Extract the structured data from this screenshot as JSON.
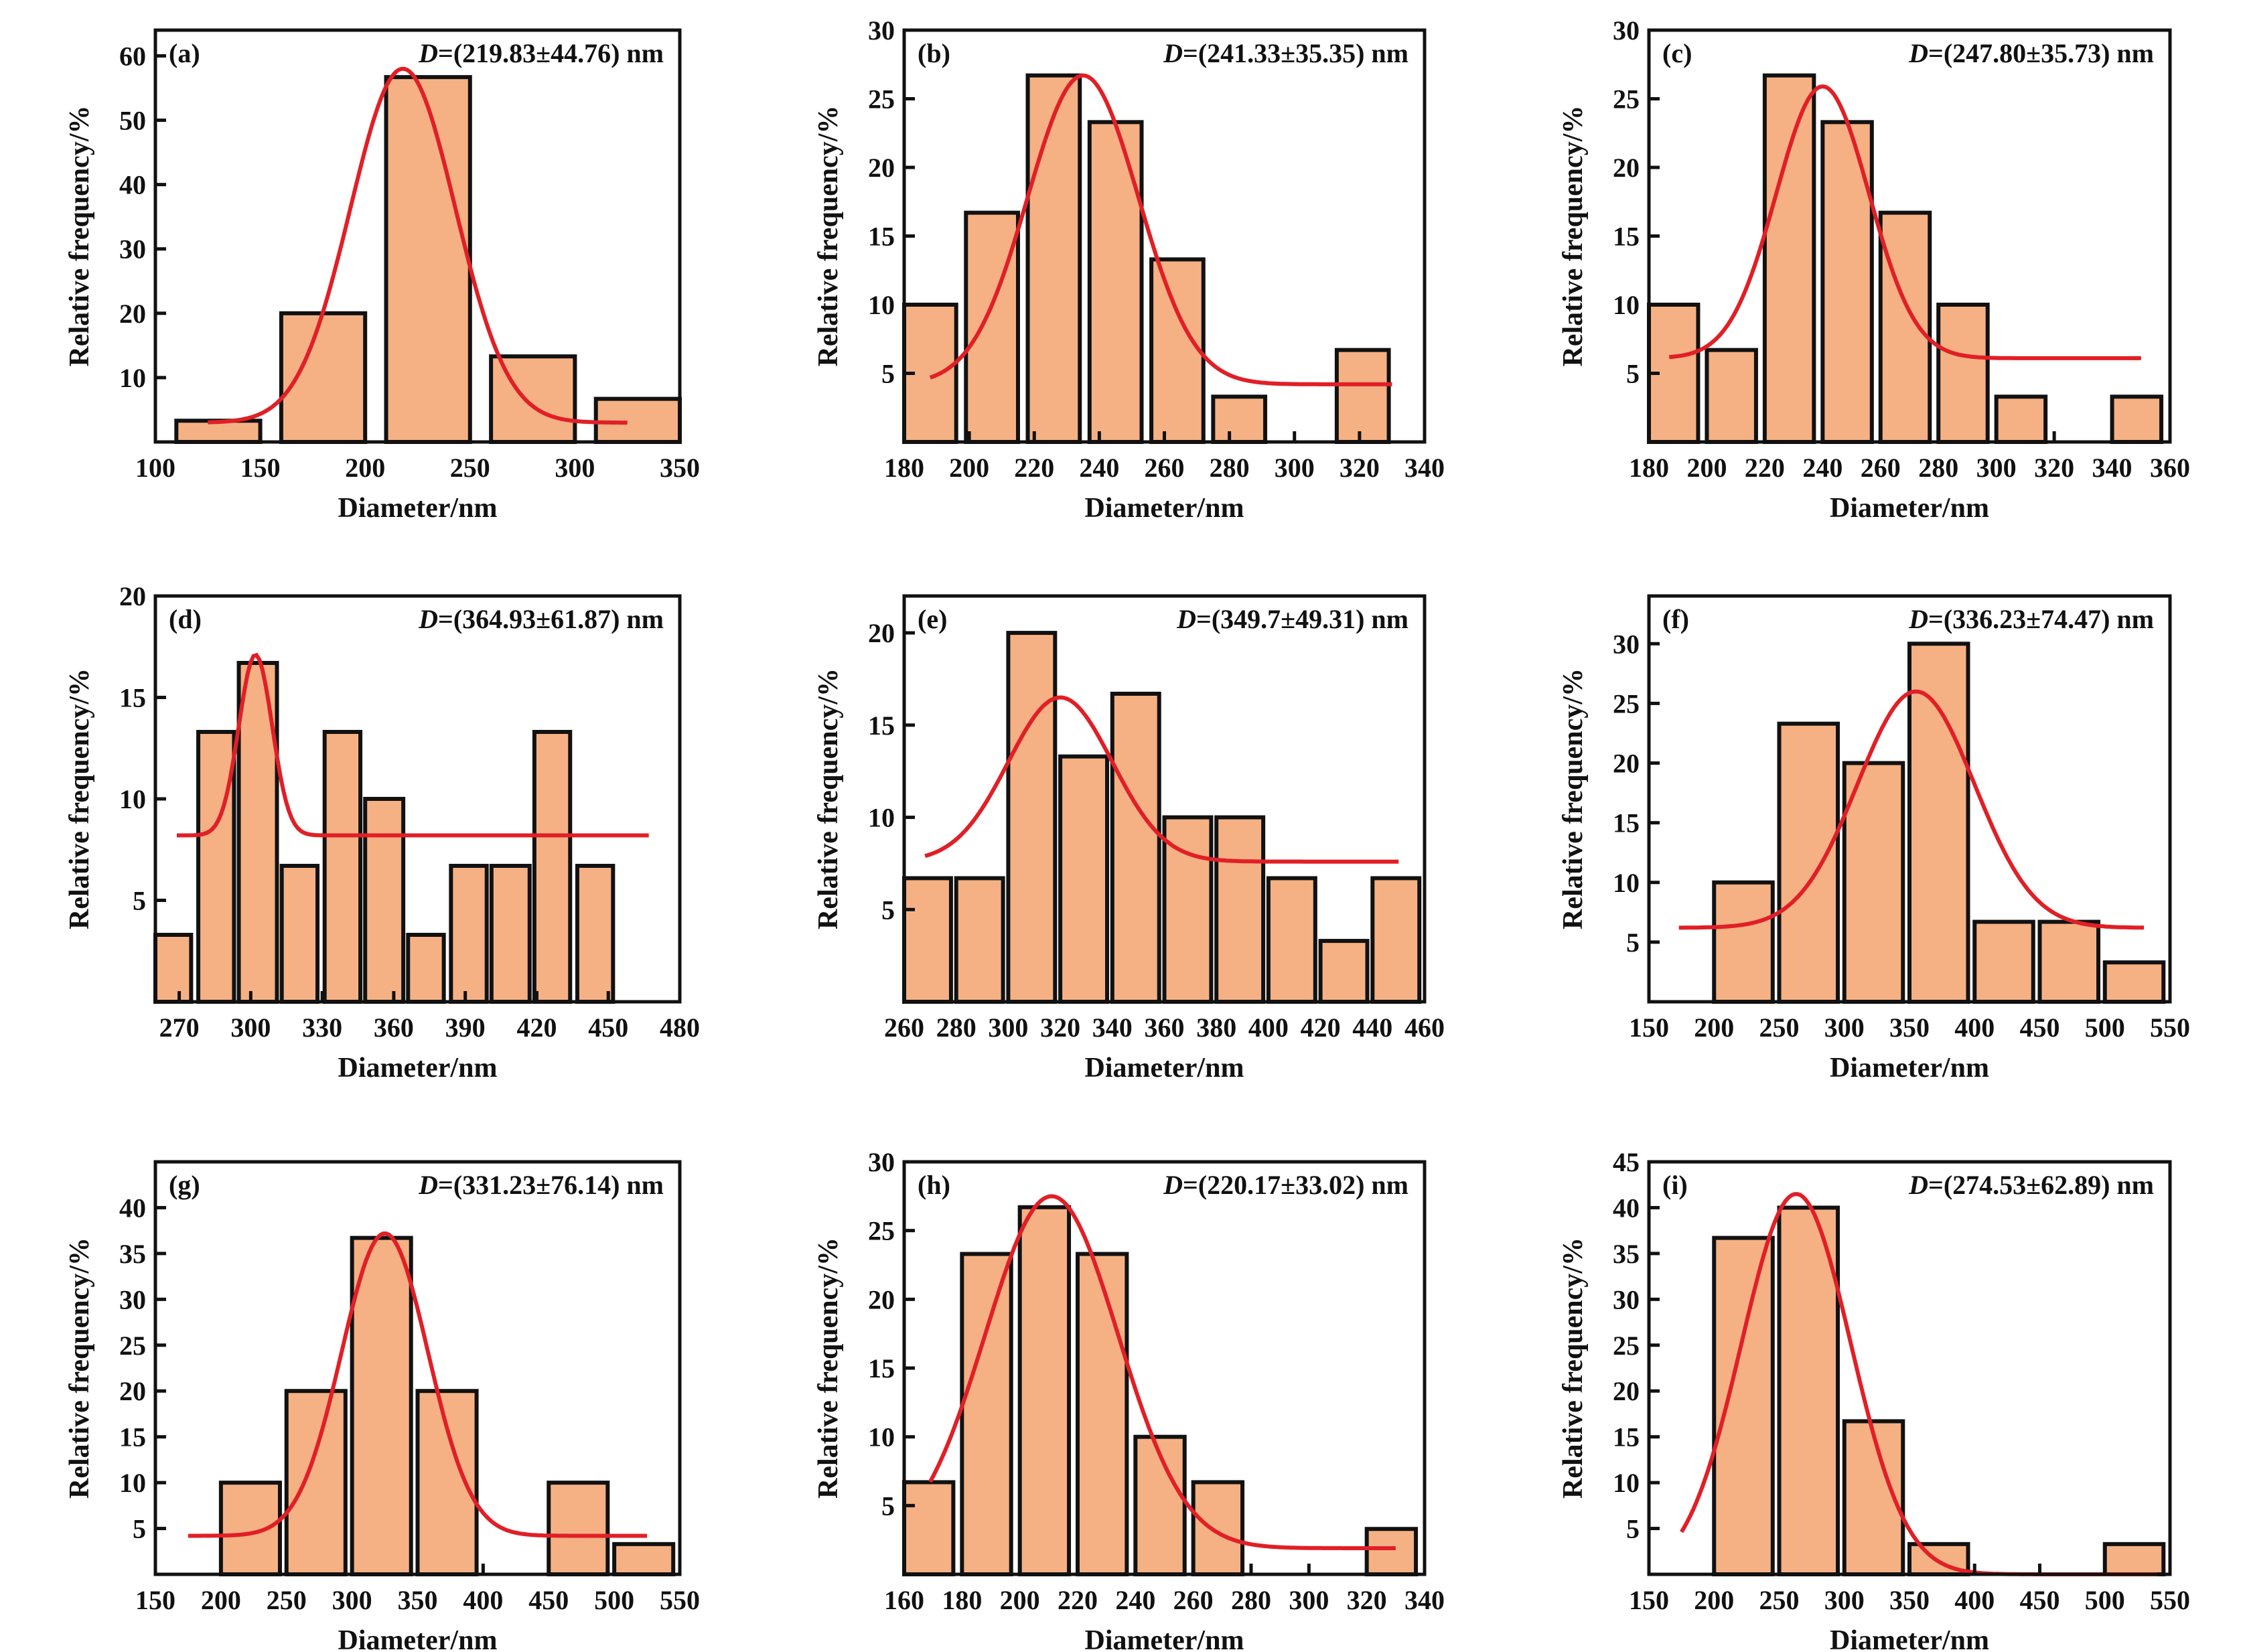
{
  "figure": {
    "bar_fill": "#f5b184",
    "bar_stroke": "#111111",
    "fit_color": "#e11f26",
    "axis_color": "#111111"
  },
  "chart_data": [
    {
      "type": "bar",
      "panel": "(a)",
      "annotation": {
        "symbol": "D",
        "text": "=(219.83±44.76) nm"
      },
      "xlabel": "Diameter/nm",
      "ylabel": "Relative frequency/%",
      "xlim": [
        100,
        350
      ],
      "ylim": [
        0,
        64
      ],
      "xticks": [
        100,
        150,
        200,
        250,
        300,
        350
      ],
      "yticks": [
        10,
        20,
        30,
        40,
        50,
        60
      ],
      "bars": [
        {
          "x0": 110,
          "x1": 150,
          "y": 3.3
        },
        {
          "x0": 160,
          "x1": 200,
          "y": 20
        },
        {
          "x0": 210,
          "x1": 250,
          "y": 56.7
        },
        {
          "x0": 260,
          "x1": 300,
          "y": 13.3
        },
        {
          "x0": 310,
          "x1": 350,
          "y": 6.7
        }
      ],
      "fit": {
        "x_range": [
          125,
          325
        ],
        "baseline": 3,
        "amplitude": 55,
        "center": 218,
        "sigma": 25
      }
    },
    {
      "type": "bar",
      "panel": "(b)",
      "annotation": {
        "symbol": "D",
        "text": "=(241.33±35.35) nm"
      },
      "xlabel": "Diameter/nm",
      "ylabel": "Relative frequency/%",
      "xlim": [
        180,
        340
      ],
      "ylim": [
        0,
        30
      ],
      "xticks": [
        180,
        200,
        220,
        240,
        260,
        280,
        300,
        320,
        340
      ],
      "yticks": [
        5,
        10,
        15,
        20,
        25,
        30
      ],
      "bars": [
        {
          "x0": 180,
          "x1": 196,
          "y": 10
        },
        {
          "x0": 199,
          "x1": 215,
          "y": 16.7
        },
        {
          "x0": 218,
          "x1": 234,
          "y": 26.7
        },
        {
          "x0": 237,
          "x1": 253,
          "y": 23.3
        },
        {
          "x0": 256,
          "x1": 272,
          "y": 13.3
        },
        {
          "x0": 275,
          "x1": 291,
          "y": 3.3
        },
        {
          "x0": 313,
          "x1": 329,
          "y": 6.7
        }
      ],
      "fit": {
        "x_range": [
          188,
          330
        ],
        "baseline": 4.2,
        "amplitude": 22.5,
        "center": 235,
        "sigma": 17
      }
    },
    {
      "type": "bar",
      "panel": "(c)",
      "annotation": {
        "symbol": "D",
        "text": "=(247.80±35.73) nm"
      },
      "xlabel": "Diameter/nm",
      "ylabel": "Relative frequency/%",
      "xlim": [
        180,
        360
      ],
      "ylim": [
        0,
        30
      ],
      "xticks": [
        180,
        200,
        220,
        240,
        260,
        280,
        300,
        320,
        340,
        360
      ],
      "yticks": [
        5,
        10,
        15,
        20,
        25,
        30
      ],
      "bars": [
        {
          "x0": 180,
          "x1": 197,
          "y": 10
        },
        {
          "x0": 200,
          "x1": 217,
          "y": 6.7
        },
        {
          "x0": 220,
          "x1": 237,
          "y": 26.7
        },
        {
          "x0": 240,
          "x1": 257,
          "y": 23.3
        },
        {
          "x0": 260,
          "x1": 277,
          "y": 16.7
        },
        {
          "x0": 280,
          "x1": 297,
          "y": 10
        },
        {
          "x0": 300,
          "x1": 317,
          "y": 3.3
        },
        {
          "x0": 340,
          "x1": 357,
          "y": 3.3
        }
      ],
      "fit": {
        "x_range": [
          187,
          350
        ],
        "baseline": 6.1,
        "amplitude": 19.8,
        "center": 240,
        "sigma": 16
      }
    },
    {
      "type": "bar",
      "panel": "(d)",
      "annotation": {
        "symbol": "D",
        "text": "=(364.93±61.87) nm"
      },
      "xlabel": "Diameter/nm",
      "ylabel": "Relative frequency/%",
      "xlim": [
        260,
        480
      ],
      "ylim": [
        0,
        20
      ],
      "xticks": [
        270,
        300,
        330,
        360,
        390,
        420,
        450,
        480
      ],
      "yticks": [
        5,
        10,
        15,
        20
      ],
      "bars": [
        {
          "x0": 260,
          "x1": 275,
          "y": 3.3
        },
        {
          "x0": 278,
          "x1": 293,
          "y": 13.3
        },
        {
          "x0": 295,
          "x1": 311,
          "y": 16.7
        },
        {
          "x0": 313,
          "x1": 328,
          "y": 6.7
        },
        {
          "x0": 331,
          "x1": 346,
          "y": 13.3
        },
        {
          "x0": 348,
          "x1": 364,
          "y": 10
        },
        {
          "x0": 366,
          "x1": 381,
          "y": 3.3
        },
        {
          "x0": 384,
          "x1": 399,
          "y": 6.7
        },
        {
          "x0": 401,
          "x1": 417,
          "y": 6.7
        },
        {
          "x0": 419,
          "x1": 434,
          "y": 13.3
        },
        {
          "x0": 437,
          "x1": 452,
          "y": 6.7
        }
      ],
      "fit": {
        "x_range": [
          269,
          467
        ],
        "baseline": 8.2,
        "amplitude": 8.9,
        "center": 302,
        "sigma": 7
      }
    },
    {
      "type": "bar",
      "panel": "(e)",
      "annotation": {
        "symbol": "D",
        "text": "=(349.7±49.31) nm"
      },
      "xlabel": "Diameter/nm",
      "ylabel": "Relative frequency/%",
      "xlim": [
        260,
        460
      ],
      "ylim": [
        0,
        22
      ],
      "xticks": [
        260,
        280,
        300,
        320,
        340,
        360,
        380,
        400,
        420,
        440,
        460
      ],
      "yticks": [
        5,
        10,
        15,
        20
      ],
      "bars": [
        {
          "x0": 260,
          "x1": 278,
          "y": 6.7
        },
        {
          "x0": 280,
          "x1": 298,
          "y": 6.7
        },
        {
          "x0": 300,
          "x1": 318,
          "y": 20
        },
        {
          "x0": 320,
          "x1": 338,
          "y": 13.3
        },
        {
          "x0": 340,
          "x1": 358,
          "y": 16.7
        },
        {
          "x0": 360,
          "x1": 378,
          "y": 10
        },
        {
          "x0": 380,
          "x1": 398,
          "y": 10
        },
        {
          "x0": 400,
          "x1": 418,
          "y": 6.7
        },
        {
          "x0": 420,
          "x1": 438,
          "y": 3.3
        },
        {
          "x0": 440,
          "x1": 458,
          "y": 6.7
        }
      ],
      "fit": {
        "x_range": [
          268,
          450
        ],
        "baseline": 7.6,
        "amplitude": 8.9,
        "center": 320,
        "sigma": 20
      }
    },
    {
      "type": "bar",
      "panel": "(f)",
      "annotation": {
        "symbol": "D",
        "text": "=(336.23±74.47) nm"
      },
      "xlabel": "Diameter/nm",
      "ylabel": "Relative frequency/%",
      "xlim": [
        150,
        550
      ],
      "ylim": [
        0,
        34
      ],
      "xticks": [
        150,
        200,
        250,
        300,
        350,
        400,
        450,
        500,
        550
      ],
      "yticks": [
        5,
        10,
        15,
        20,
        25,
        30
      ],
      "bars": [
        {
          "x0": 200,
          "x1": 245,
          "y": 10
        },
        {
          "x0": 250,
          "x1": 295,
          "y": 23.3
        },
        {
          "x0": 300,
          "x1": 345,
          "y": 20
        },
        {
          "x0": 350,
          "x1": 395,
          "y": 30
        },
        {
          "x0": 400,
          "x1": 445,
          "y": 6.7
        },
        {
          "x0": 450,
          "x1": 495,
          "y": 6.7
        },
        {
          "x0": 500,
          "x1": 545,
          "y": 3.3
        }
      ],
      "fit": {
        "x_range": [
          173,
          530
        ],
        "baseline": 6.2,
        "amplitude": 19.8,
        "center": 355,
        "sigma": 45
      }
    },
    {
      "type": "bar",
      "panel": "(g)",
      "annotation": {
        "symbol": "D",
        "text": "=(331.23±76.14) nm"
      },
      "xlabel": "Diameter/nm",
      "ylabel": "Relative frequency/%",
      "xlim": [
        150,
        550
      ],
      "ylim": [
        0,
        45
      ],
      "xticks": [
        150,
        200,
        250,
        300,
        350,
        400,
        450,
        500,
        550
      ],
      "yticks": [
        5,
        10,
        15,
        20,
        25,
        30,
        35,
        40
      ],
      "bars": [
        {
          "x0": 200,
          "x1": 245,
          "y": 10
        },
        {
          "x0": 250,
          "x1": 295,
          "y": 20
        },
        {
          "x0": 300,
          "x1": 345,
          "y": 36.7
        },
        {
          "x0": 350,
          "x1": 395,
          "y": 20
        },
        {
          "x0": 450,
          "x1": 495,
          "y": 10
        },
        {
          "x0": 500,
          "x1": 545,
          "y": 3.3
        }
      ],
      "fit": {
        "x_range": [
          175,
          525
        ],
        "baseline": 4.2,
        "amplitude": 33,
        "center": 325,
        "sigma": 33
      }
    },
    {
      "type": "bar",
      "panel": "(h)",
      "annotation": {
        "symbol": "D",
        "text": "=(220.17±33.02) nm"
      },
      "xlabel": "Diameter/nm",
      "ylabel": "Relative frequency/%",
      "xlim": [
        160,
        340
      ],
      "ylim": [
        0,
        30
      ],
      "xticks": [
        160,
        180,
        200,
        220,
        240,
        260,
        280,
        300,
        320,
        340
      ],
      "yticks": [
        5,
        10,
        15,
        20,
        25,
        30
      ],
      "bars": [
        {
          "x0": 160,
          "x1": 177,
          "y": 6.7
        },
        {
          "x0": 180,
          "x1": 197,
          "y": 23.3
        },
        {
          "x0": 200,
          "x1": 217,
          "y": 26.7
        },
        {
          "x0": 220,
          "x1": 237,
          "y": 23.3
        },
        {
          "x0": 240,
          "x1": 257,
          "y": 10
        },
        {
          "x0": 260,
          "x1": 277,
          "y": 6.7
        },
        {
          "x0": 320,
          "x1": 337,
          "y": 3.3
        }
      ],
      "fit": {
        "x_range": [
          169,
          330
        ],
        "baseline": 1.9,
        "amplitude": 25.6,
        "center": 211,
        "sigma": 23
      }
    },
    {
      "type": "bar",
      "panel": "(i)",
      "annotation": {
        "symbol": "D",
        "text": "=(274.53±62.89) nm"
      },
      "xlabel": "Diameter/nm",
      "ylabel": "Relative frequency/%",
      "xlim": [
        150,
        550
      ],
      "ylim": [
        0,
        45
      ],
      "xticks": [
        150,
        200,
        250,
        300,
        350,
        400,
        450,
        500,
        550
      ],
      "yticks": [
        5,
        10,
        15,
        20,
        25,
        30,
        35,
        40,
        45
      ],
      "bars": [
        {
          "x0": 200,
          "x1": 245,
          "y": 36.7
        },
        {
          "x0": 250,
          "x1": 295,
          "y": 40
        },
        {
          "x0": 300,
          "x1": 345,
          "y": 16.7
        },
        {
          "x0": 350,
          "x1": 395,
          "y": 3.3
        },
        {
          "x0": 500,
          "x1": 545,
          "y": 3.3
        }
      ],
      "fit": {
        "x_range": [
          175,
          540
        ],
        "baseline": 0,
        "amplitude": 41.5,
        "center": 263,
        "sigma": 42
      }
    }
  ]
}
